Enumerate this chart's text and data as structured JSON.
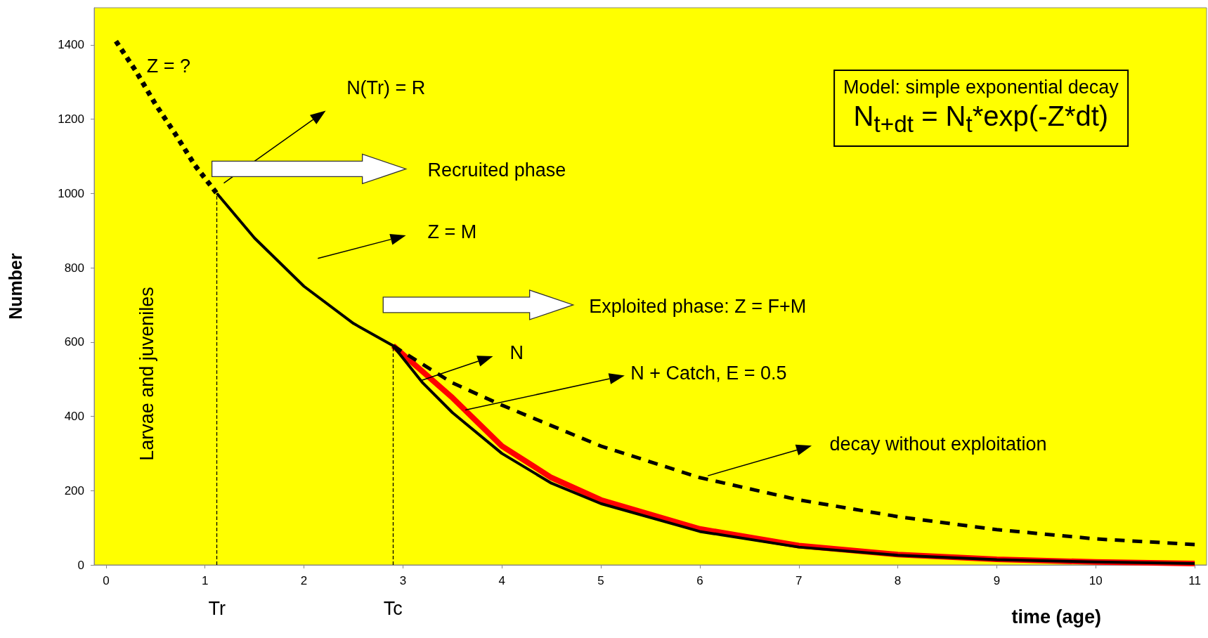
{
  "chart_data": {
    "type": "line",
    "xlabel": "time (age)",
    "ylabel": "Number",
    "xlim": [
      -0.12,
      11.12
    ],
    "xticks": [
      0,
      1,
      2,
      3,
      4,
      5,
      6,
      7,
      8,
      9,
      10,
      11
    ],
    "ylim": [
      0,
      1500
    ],
    "yticks": [
      0,
      200,
      400,
      600,
      800,
      1000,
      1200,
      1400
    ],
    "grid": false,
    "marker": "none",
    "series": [
      {
        "color": "#000000",
        "line_style": "dotted",
        "x": [
          0.1,
          0.3,
          0.5,
          0.7,
          0.9,
          1.12
        ],
        "values": [
          1410,
          1330,
          1240,
          1160,
          1075,
          1000
        ]
      },
      {
        "color": "#000000",
        "line_style": "solid",
        "x": [
          1.12,
          1.5,
          2,
          2.5,
          2.9,
          3.2,
          3.5,
          4,
          4.5,
          5,
          6,
          7,
          8,
          9,
          10,
          11
        ],
        "values": [
          1000,
          880,
          750,
          650,
          590,
          490,
          410,
          300,
          220,
          165,
          90,
          48,
          26,
          14,
          8,
          4
        ]
      },
      {
        "color": "#ff0000",
        "line_style": "solid",
        "x": [
          2.9,
          3.2,
          3.5,
          4,
          4.5,
          5,
          6,
          7,
          8,
          9,
          10,
          11
        ],
        "values": [
          590,
          520,
          450,
          320,
          235,
          175,
          97,
          52,
          28,
          15,
          8,
          4
        ]
      },
      {
        "color": "#000000",
        "line_style": "dashed",
        "x": [
          2.9,
          3.5,
          4,
          5,
          6,
          7,
          8,
          9,
          10,
          11
        ],
        "values": [
          590,
          490,
          430,
          320,
          235,
          175,
          130,
          95,
          70,
          55
        ]
      }
    ],
    "ref_lines": [
      {
        "axis": "x",
        "value": 1.12,
        "label": "Tr",
        "color": "#000000",
        "line_style": "dashed"
      },
      {
        "axis": "x",
        "value": 2.9,
        "label": "Tc",
        "color": "#000000",
        "line_style": "dashed"
      }
    ],
    "annotations": [
      "Z = ?",
      "N(Tr) = R",
      "Recruited phase",
      "Z = M",
      "Exploited phase: Z = F+M",
      "N",
      {
        "text": "N + Catch, E = 0.5",
        "x": 3.63,
        "y": 417
      },
      "decay without exploitation",
      "Larvae and juveniles",
      "Model: simple exponential decay",
      "N$_{t+dt}$ = N$_{t}$*exp(-Z*dt)"
    ]
  }
}
